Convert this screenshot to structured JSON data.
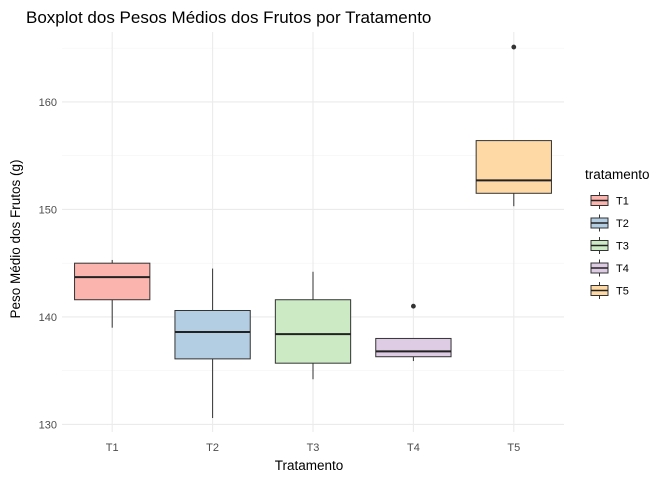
{
  "chart_data": {
    "type": "boxplot",
    "title": "Boxplot dos Pesos Médios dos Frutos por Tratamento",
    "xlabel": "Tratamento",
    "ylabel": "Peso Médio dos Frutos (g)",
    "ylim": [
      129.3,
      166.5
    ],
    "yticks": [
      130,
      140,
      150,
      160
    ],
    "grid": true,
    "legend": {
      "title": "tratamento",
      "position": "right",
      "entries": [
        "T1",
        "T2",
        "T3",
        "T4",
        "T5"
      ]
    },
    "categories": [
      "T1",
      "T2",
      "T3",
      "T4",
      "T5"
    ],
    "colors": [
      "#FBB4AE",
      "#B3CDE3",
      "#CCEBC5",
      "#DECBE4",
      "#FED9A6"
    ],
    "boxes": [
      {
        "name": "T1",
        "min": 139.0,
        "q1": 141.6,
        "median": 143.7,
        "q3": 145.0,
        "max": 145.3,
        "outliers": []
      },
      {
        "name": "T2",
        "min": 130.6,
        "q1": 136.1,
        "median": 138.6,
        "q3": 140.6,
        "max": 144.5,
        "outliers": []
      },
      {
        "name": "T3",
        "min": 134.2,
        "q1": 135.7,
        "median": 138.4,
        "q3": 141.6,
        "max": 144.2,
        "outliers": []
      },
      {
        "name": "T4",
        "min": 135.9,
        "q1": 136.3,
        "median": 136.8,
        "q3": 138.0,
        "max": 138.0,
        "outliers": [
          141.0
        ]
      },
      {
        "name": "T5",
        "min": 150.3,
        "q1": 151.5,
        "median": 152.7,
        "q3": 156.4,
        "max": 156.4,
        "outliers": [
          165.1
        ]
      }
    ]
  }
}
